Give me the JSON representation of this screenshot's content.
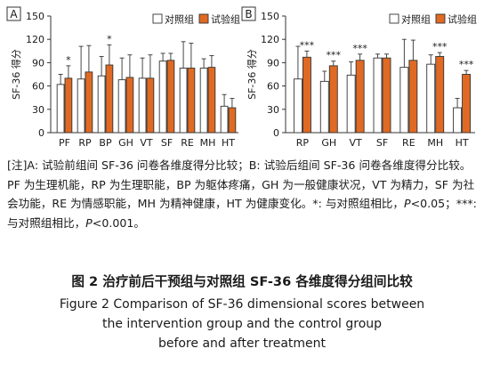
{
  "chart_data": [
    {
      "panel": "A",
      "type": "bar",
      "categories": [
        "PF",
        "RP",
        "BP",
        "GH",
        "VT",
        "SF",
        "RE",
        "MH",
        "HT"
      ],
      "ylabel": "SF-36 得分",
      "ylim": [
        0,
        150
      ],
      "yticks": [
        0,
        30,
        60,
        90,
        120,
        150
      ],
      "legend": "top-right",
      "grid": false,
      "series": [
        {
          "name": "对照组",
          "values": [
            62,
            69,
            73,
            68,
            70,
            92,
            83,
            83,
            34
          ],
          "errors": [
            13,
            42,
            25,
            28,
            26,
            10,
            34,
            12,
            15
          ],
          "color": "#ffffff"
        },
        {
          "name": "试验组",
          "values": [
            70,
            78,
            87,
            71,
            70,
            93,
            83,
            84,
            32
          ],
          "errors": [
            16,
            34,
            26,
            29,
            30,
            9,
            32,
            15,
            12
          ],
          "color": "#e06a23"
        }
      ],
      "annotations": [
        "",
        "",
        "",
        "",
        "",
        "",
        "",
        "",
        ""
      ],
      "annotations_treatment": [
        "*",
        "",
        "*",
        "",
        "",
        "",
        "",
        "",
        ""
      ]
    },
    {
      "panel": "B",
      "type": "bar",
      "categories": [
        "RP",
        "GH",
        "VT",
        "SF",
        "RE",
        "MH",
        "HT"
      ],
      "ylabel": "SF-36 得分",
      "ylim": [
        0,
        150
      ],
      "yticks": [
        0,
        30,
        60,
        90,
        120,
        150
      ],
      "legend": "top-right",
      "grid": false,
      "series": [
        {
          "name": "对照组",
          "values": [
            69,
            66,
            74,
            96,
            84,
            88,
            32
          ],
          "errors": [
            42,
            13,
            17,
            5,
            36,
            12,
            12
          ],
          "color": "#ffffff"
        },
        {
          "name": "试验组",
          "values": [
            97,
            86,
            93,
            96,
            93,
            98,
            75
          ],
          "errors": [
            8,
            6,
            8,
            5,
            26,
            5,
            5
          ],
          "color": "#e06a23"
        }
      ],
      "annotations_treatment": [
        "***",
        "***",
        "***",
        "",
        "",
        "***",
        "***"
      ]
    }
  ],
  "note": {
    "prefix": "[注]",
    "text1": "A: 试验前组间 SF-36 问卷各维度得分比较；B: 试验后组间 SF-36 问卷各维度得分比较。PF 为生理机能，RP 为生理职能，BP 为躯体疼痛，GH 为一般健康状况，VT 为精力，SF 为社会功能，RE 为情感职能，MH 为精神健康，HT 为健康变化。",
    "sig1": "*: 与对照组相比，",
    "p1": "P",
    "p1rest": "<0.05；",
    "sig2": "***: 与对照组相比，",
    "p2": "P",
    "p2rest": "<0.001。"
  },
  "figure": {
    "title_cn": "图 2   治疗前后干预组与对照组 SF-36 各维度得分组间比较",
    "title_en_1": "Figure 2   Comparison of SF-36 dimensional scores between",
    "title_en_2": "the intervention group and the control group",
    "title_en_3": "before and after treatment"
  }
}
